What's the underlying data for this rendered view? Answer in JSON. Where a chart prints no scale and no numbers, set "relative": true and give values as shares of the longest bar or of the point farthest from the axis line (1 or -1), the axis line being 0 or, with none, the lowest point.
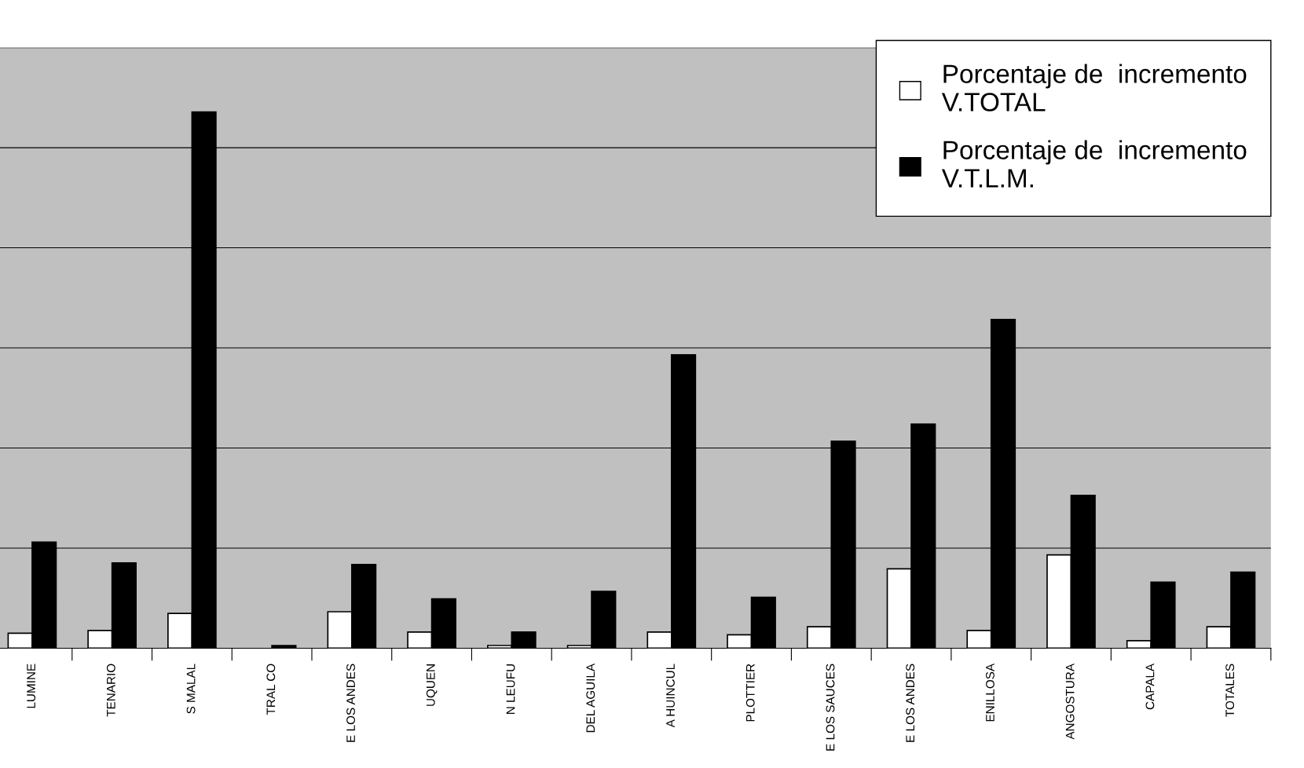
{
  "chart_data": {
    "type": "bar",
    "relative": true,
    "grid": "y",
    "legend": "top right",
    "categories": [
      "LUMINE",
      "TENARIO",
      "S MALAL",
      "TRAL CO",
      "E LOS ANDES",
      "UQUEN",
      "N LEUFU",
      "DEL AGUILA",
      "A HUINCUL",
      "PLOTTIER",
      "E LOS SAUCES",
      "E LOS ANDES",
      "ENILLOSA",
      "ANGOSTURA",
      "CAPALA",
      "TOTALES"
    ],
    "series": [
      {
        "name": "Porcentaje de  incremento\nV.TOTAL",
        "color": "#ffffff",
        "values": [
          0.028,
          0.033,
          0.065,
          null,
          0.068,
          0.03,
          0.005,
          0.005,
          0.03,
          0.025,
          0.04,
          0.148,
          0.033,
          0.174,
          0.014,
          0.04
        ]
      },
      {
        "name": "Porcentaje de  incremento\nV.T.L.M.",
        "color": "#000000",
        "values": [
          0.198,
          0.159,
          1,
          0.005,
          0.156,
          0.092,
          0.03,
          0.106,
          0.547,
          0.095,
          0.386,
          0.418,
          0.613,
          0.285,
          0.123,
          0.142
        ]
      }
    ]
  }
}
